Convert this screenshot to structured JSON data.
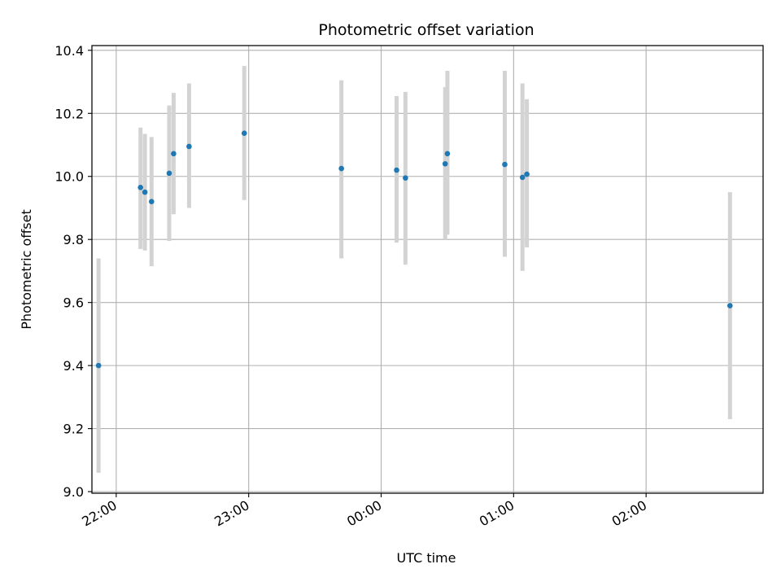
{
  "chart_data": {
    "type": "scatter",
    "title": "Photometric offset variation",
    "xlabel": "UTC time",
    "ylabel": "Photometric offset",
    "grid": true,
    "x_axis": "time (hours, UTC)",
    "xlim": [
      "21:49",
      "02:53"
    ],
    "ylim": [
      8.995,
      10.415
    ],
    "x_ticks": [
      "22:00",
      "23:00",
      "00:00",
      "01:00",
      "02:00"
    ],
    "y_ticks": [
      "9.0",
      "9.2",
      "9.4",
      "9.6",
      "9.8",
      "10.0",
      "10.2",
      "10.4"
    ],
    "y_tick_values": [
      9.0,
      9.2,
      9.4,
      9.6,
      9.8,
      10.0,
      10.2,
      10.4
    ],
    "colors": {
      "points": "#1f77b4",
      "error_bars": "#d3d3d3",
      "grid": "#b0b0b0",
      "axes": "#000000"
    },
    "points": [
      {
        "x": "21:52",
        "y": 9.4,
        "y_low": 9.06,
        "y_high": 9.74
      },
      {
        "x": "22:11",
        "y": 9.965,
        "y_low": 9.77,
        "y_high": 10.155
      },
      {
        "x": "22:13",
        "y": 9.95,
        "y_low": 9.765,
        "y_high": 10.135
      },
      {
        "x": "22:16",
        "y": 9.92,
        "y_low": 9.715,
        "y_high": 10.125
      },
      {
        "x": "22:24",
        "y": 10.01,
        "y_low": 9.795,
        "y_high": 10.225
      },
      {
        "x": "22:26",
        "y": 10.072,
        "y_low": 9.88,
        "y_high": 10.265
      },
      {
        "x": "22:33",
        "y": 10.095,
        "y_low": 9.9,
        "y_high": 10.295
      },
      {
        "x": "22:58",
        "y": 10.137,
        "y_low": 9.925,
        "y_high": 10.35
      },
      {
        "x": "23:42",
        "y": 10.025,
        "y_low": 9.74,
        "y_high": 10.305
      },
      {
        "x": "00:07",
        "y": 10.02,
        "y_low": 9.79,
        "y_high": 10.255
      },
      {
        "x": "00:11",
        "y": 9.995,
        "y_low": 9.72,
        "y_high": 10.268
      },
      {
        "x": "00:29",
        "y": 10.04,
        "y_low": 9.8,
        "y_high": 10.283
      },
      {
        "x": "00:30",
        "y": 10.072,
        "y_low": 9.815,
        "y_high": 10.335
      },
      {
        "x": "00:56",
        "y": 10.038,
        "y_low": 9.745,
        "y_high": 10.335
      },
      {
        "x": "01:04",
        "y": 9.997,
        "y_low": 9.7,
        "y_high": 10.295
      },
      {
        "x": "01:06",
        "y": 10.007,
        "y_low": 9.775,
        "y_high": 10.245
      },
      {
        "x": "02:38",
        "y": 9.59,
        "y_low": 9.23,
        "y_high": 9.95
      }
    ]
  }
}
